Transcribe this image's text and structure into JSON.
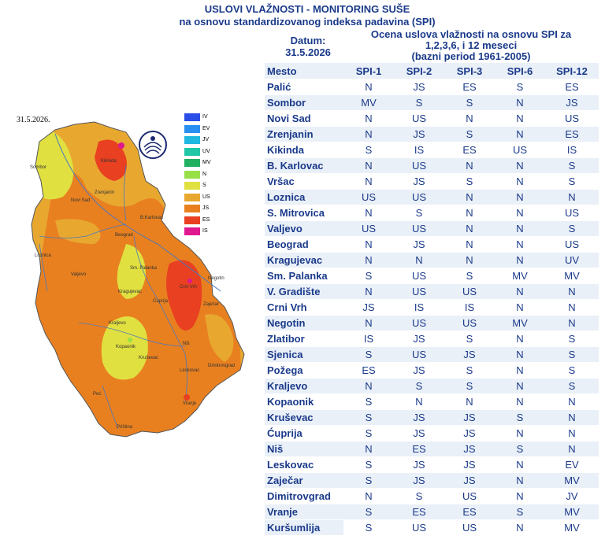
{
  "header": {
    "title_line1": "USLOVI VLAŽNOSTI - MONITORING SUŠE",
    "title_line2": "na osnovu standardizovanog indeksa padavina (SPI)",
    "datum_label": "Datum:",
    "datum_value": "31.5.2026",
    "ocena_line1": "Ocena uslova vlažnosti na osnovu SPI za",
    "ocena_line2": "1,2,3,6, i 12 meseci",
    "ocena_line3": "(bazni period 1961-2005)"
  },
  "map": {
    "date": "31.5.2026.",
    "legend": [
      {
        "label": "IV",
        "color": "#2a4de8"
      },
      {
        "label": "EV",
        "color": "#2a8ff0"
      },
      {
        "label": "JV",
        "color": "#20b8e0"
      },
      {
        "label": "UV",
        "color": "#20c8a8"
      },
      {
        "label": "MV",
        "color": "#20b060"
      },
      {
        "label": "N",
        "color": "#98e048"
      },
      {
        "label": "S",
        "color": "#e0e040"
      },
      {
        "label": "US",
        "color": "#e8a830"
      },
      {
        "label": "JS",
        "color": "#e88020"
      },
      {
        "label": "ES",
        "color": "#e84020"
      },
      {
        "label": "IS",
        "color": "#e01890"
      }
    ],
    "cities": [
      {
        "name": "Sombor"
      },
      {
        "name": "Kikinda"
      },
      {
        "name": "Zrenjanin"
      },
      {
        "name": "Novi Sad"
      },
      {
        "name": "B.Karlovac"
      },
      {
        "name": "Loznica"
      },
      {
        "name": "Beograd"
      },
      {
        "name": "Valjevo"
      },
      {
        "name": "Sm. Palanka"
      },
      {
        "name": "Kragujevac"
      },
      {
        "name": "Ćuprija"
      },
      {
        "name": "Crni Vrh"
      },
      {
        "name": "Negotin"
      },
      {
        "name": "Kraljevo"
      },
      {
        "name": "Zaječar"
      },
      {
        "name": "Niš"
      },
      {
        "name": "Leskovac"
      },
      {
        "name": "Kruševac"
      },
      {
        "name": "Dimitrovgrad"
      },
      {
        "name": "Vranje"
      },
      {
        "name": "Peć"
      },
      {
        "name": "Priština"
      },
      {
        "name": "Kopaonik"
      }
    ]
  },
  "table": {
    "headers": [
      "Mesto",
      "SPI-1",
      "SPI-2",
      "SPI-3",
      "SPI-6",
      "SPI-12"
    ],
    "rows": [
      [
        "Palić",
        "N",
        "JS",
        "ES",
        "S",
        "ES"
      ],
      [
        "Sombor",
        "MV",
        "S",
        "S",
        "N",
        "JS"
      ],
      [
        "Novi Sad",
        "N",
        "US",
        "N",
        "N",
        "US"
      ],
      [
        "Zrenjanin",
        "N",
        "JS",
        "S",
        "N",
        "ES"
      ],
      [
        "Kikinda",
        "S",
        "IS",
        "ES",
        "US",
        "IS"
      ],
      [
        "B. Karlovac",
        "N",
        "US",
        "N",
        "N",
        "S"
      ],
      [
        "Vršac",
        "N",
        "JS",
        "S",
        "N",
        "S"
      ],
      [
        "Loznica",
        "US",
        "US",
        "N",
        "N",
        "N"
      ],
      [
        "S. Mitrovica",
        "N",
        "S",
        "N",
        "N",
        "US"
      ],
      [
        "Valjevo",
        "US",
        "US",
        "N",
        "N",
        "S"
      ],
      [
        "Beograd",
        "N",
        "JS",
        "N",
        "N",
        "US"
      ],
      [
        "Kragujevac",
        "N",
        "N",
        "N",
        "N",
        "UV"
      ],
      [
        "Sm. Palanka",
        "S",
        "US",
        "S",
        "MV",
        "MV"
      ],
      [
        "V. Gradište",
        "N",
        "US",
        "US",
        "N",
        "N"
      ],
      [
        "Crni Vrh",
        "JS",
        "IS",
        "IS",
        "N",
        "N"
      ],
      [
        "Negotin",
        "N",
        "US",
        "US",
        "MV",
        "N"
      ],
      [
        "Zlatibor",
        "IS",
        "JS",
        "S",
        "N",
        "S"
      ],
      [
        "Sjenica",
        "S",
        "US",
        "JS",
        "N",
        "S"
      ],
      [
        "Požega",
        "ES",
        "JS",
        "S",
        "N",
        "S"
      ],
      [
        "Kraljevo",
        "N",
        "S",
        "S",
        "N",
        "S"
      ],
      [
        "Kopaonik",
        "S",
        "N",
        "N",
        "N",
        "N"
      ],
      [
        "Kruševac",
        "S",
        "JS",
        "JS",
        "S",
        "N"
      ],
      [
        "Ćuprija",
        "S",
        "JS",
        "JS",
        "N",
        "N"
      ],
      [
        "Niš",
        "N",
        "ES",
        "JS",
        "S",
        "N"
      ],
      [
        "Leskovac",
        "S",
        "JS",
        "JS",
        "N",
        "EV"
      ],
      [
        "Zaječar",
        "S",
        "JS",
        "JS",
        "N",
        "MV"
      ],
      [
        "Dimitrovgrad",
        "N",
        "S",
        "US",
        "N",
        "JV"
      ],
      [
        "Vranje",
        "S",
        "ES",
        "ES",
        "S",
        "MV"
      ],
      [
        "Kuršumlija",
        "S",
        "US",
        "US",
        "N",
        "MV"
      ]
    ]
  }
}
